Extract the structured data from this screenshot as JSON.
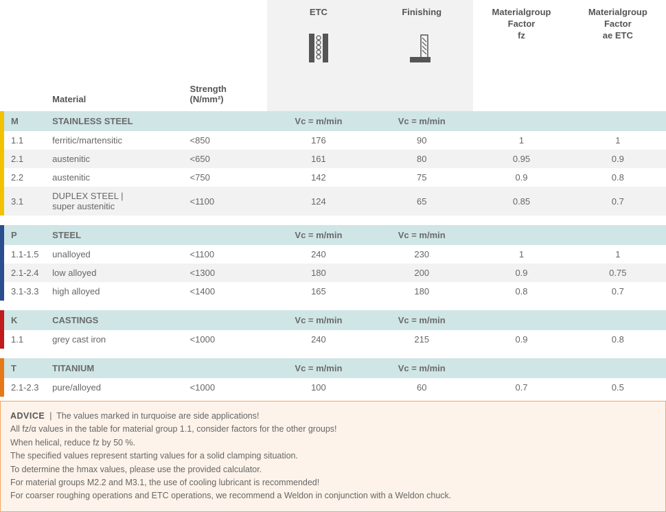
{
  "headers": {
    "material": "Material",
    "strength": "Strength\n(N/mm²)",
    "etc": "ETC",
    "finishing": "Finishing",
    "factor_fz": "Materialgroup\nFactor\nfz",
    "factor_ae": "Materialgroup\nFactor\nae ETC",
    "vc_label": "Vc = m/min"
  },
  "colors": {
    "group_bg": "#cfe5e6",
    "alt_row": "#f2f2f2",
    "bar_M": "#f2c200",
    "bar_P": "#2a4e8f",
    "bar_K": "#c01a1a",
    "bar_T": "#e67817",
    "advice_bg": "#fdf3ea",
    "advice_border": "#f4a45f",
    "icon_fill": "#555"
  },
  "groups": [
    {
      "code": "M",
      "label": "STAINLESS STEEL",
      "bar_color": "#f2c200",
      "rows": [
        {
          "code": "1.1",
          "material": "ferritic/martensitic",
          "strength": "<850",
          "etc": "176",
          "fin": "90",
          "fz": "1",
          "ae": "1"
        },
        {
          "code": "2.1",
          "material": "austenitic",
          "strength": "<650",
          "etc": "161",
          "fin": "80",
          "fz": "0.95",
          "ae": "0.9"
        },
        {
          "code": "2.2",
          "material": "austenitic",
          "strength": "<750",
          "etc": "142",
          "fin": "75",
          "fz": "0.9",
          "ae": "0.8"
        },
        {
          "code": "3.1",
          "material": "DUPLEX STEEL |\nsuper austenitic",
          "strength": "<1100",
          "etc": "124",
          "fin": "65",
          "fz": "0.85",
          "ae": "0.7"
        }
      ]
    },
    {
      "code": "P",
      "label": "STEEL",
      "bar_color": "#2a4e8f",
      "rows": [
        {
          "code": "1.1-1.5",
          "material": "unalloyed",
          "strength": "<1100",
          "etc": "240",
          "fin": "230",
          "fz": "1",
          "ae": "1"
        },
        {
          "code": "2.1-2.4",
          "material": "low alloyed",
          "strength": "<1300",
          "etc": "180",
          "fin": "200",
          "fz": "0.9",
          "ae": "0.75"
        },
        {
          "code": "3.1-3.3",
          "material": "high alloyed",
          "strength": "<1400",
          "etc": "165",
          "fin": "180",
          "fz": "0.8",
          "ae": "0.7"
        }
      ]
    },
    {
      "code": "K",
      "label": "CASTINGS",
      "bar_color": "#c01a1a",
      "rows": [
        {
          "code": "1.1",
          "material": "grey cast iron",
          "strength": "<1000",
          "etc": "240",
          "fin": "215",
          "fz": "0.9",
          "ae": "0.8"
        }
      ]
    },
    {
      "code": "T",
      "label": "TITANIUM",
      "bar_color": "#e67817",
      "rows": [
        {
          "code": "2.1-2.3",
          "material": "pure/alloyed",
          "strength": "<1000",
          "etc": "100",
          "fin": "60",
          "fz": "0.7",
          "ae": "0.5"
        }
      ]
    }
  ],
  "advice": {
    "title": "ADVICE",
    "lines": [
      "The values marked in turquoise are side applications!",
      "All fz/α values in the table for material group 1.1, consider factors for the other groups!",
      "When helical, reduce fz by 50 %.",
      "The specified values represent starting values for a solid clamping situation.",
      "To determine the hmax values, please use the provided calculator.",
      "For material groups M2.2 and M3.1, the use of cooling lubricant is recommended!",
      "For coarser roughing operations and ETC operations, we recommend a Weldon in conjunction with a Weldon chuck."
    ]
  }
}
